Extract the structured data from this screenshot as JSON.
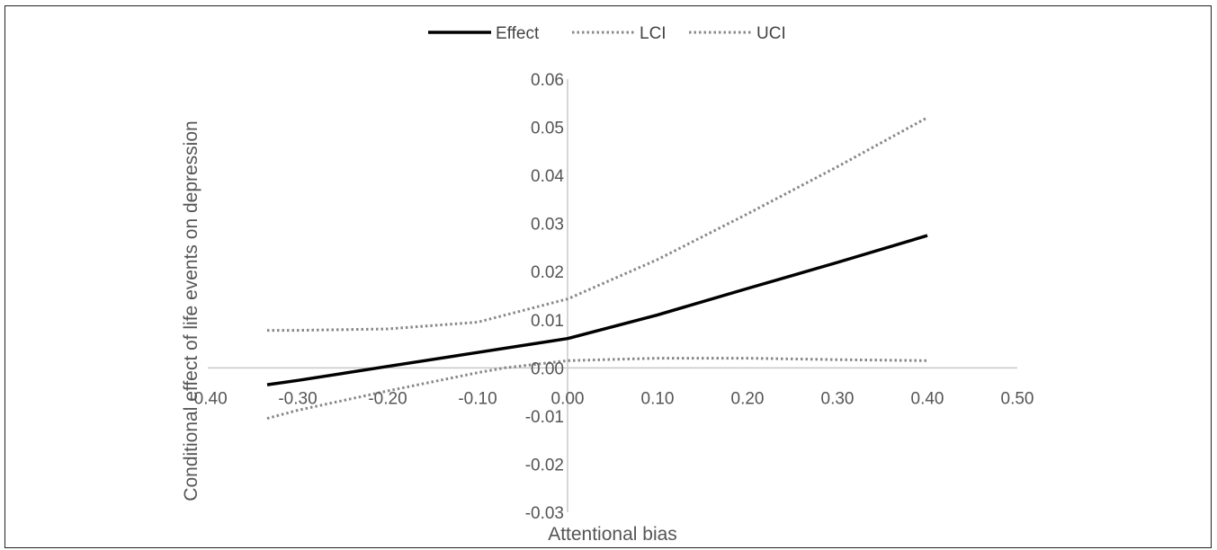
{
  "chart_data": {
    "type": "line",
    "title": "",
    "xlabel": "Attentional bias",
    "ylabel": "Conditional effect of life events on depression",
    "xlim": [
      -0.4,
      0.5
    ],
    "ylim": [
      -0.03,
      0.06
    ],
    "x_ticks": [
      "-0.40",
      "-0.30",
      "-0.20",
      "-0.10",
      "0.00",
      "0.10",
      "0.20",
      "0.30",
      "0.40",
      "0.50"
    ],
    "y_ticks": [
      "0.06",
      "0.05",
      "0.04",
      "0.03",
      "0.02",
      "0.01",
      "0.00",
      "-0.01",
      "-0.02",
      "-0.03"
    ],
    "legend_position": "top",
    "grid": false,
    "series": [
      {
        "name": "Effect",
        "style": "solid",
        "color": "#000000",
        "x": [
          -0.334,
          -0.3,
          -0.2,
          -0.1,
          0.0,
          0.1,
          0.2,
          0.3,
          0.4
        ],
        "y": [
          -0.0035,
          -0.0026,
          0.0003,
          0.0032,
          0.0061,
          0.011,
          0.0165,
          0.0219,
          0.0275
        ]
      },
      {
        "name": "LCI",
        "style": "dotted",
        "color": "#888888",
        "x": [
          -0.334,
          -0.3,
          -0.2,
          -0.1,
          -0.07,
          0.0,
          0.1,
          0.2,
          0.3,
          0.4
        ],
        "y": [
          -0.0105,
          -0.0088,
          -0.0048,
          -0.001,
          0.0,
          0.0015,
          0.002,
          0.002,
          0.0017,
          0.0015
        ]
      },
      {
        "name": "UCI",
        "style": "dotted",
        "color": "#888888",
        "x": [
          -0.334,
          -0.3,
          -0.2,
          -0.1,
          0.0,
          0.1,
          0.2,
          0.3,
          0.4
        ],
        "y": [
          0.0078,
          0.0078,
          0.0081,
          0.0095,
          0.0143,
          0.0225,
          0.032,
          0.0418,
          0.052
        ]
      }
    ]
  }
}
